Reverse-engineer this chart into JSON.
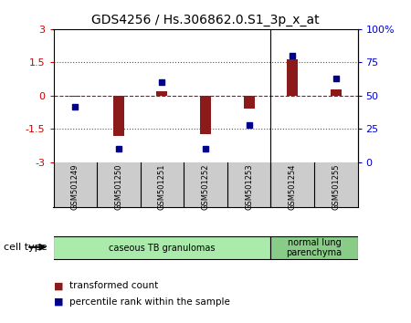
{
  "title": "GDS4256 / Hs.306862.0.S1_3p_x_at",
  "samples": [
    "GSM501249",
    "GSM501250",
    "GSM501251",
    "GSM501252",
    "GSM501253",
    "GSM501254",
    "GSM501255"
  ],
  "transformed_counts": [
    -0.05,
    -1.8,
    0.22,
    -1.72,
    -0.6,
    1.65,
    0.28
  ],
  "percentile_ranks": [
    42,
    10,
    60,
    10,
    28,
    80,
    63
  ],
  "ylim_left": [
    -3,
    3
  ],
  "ylim_right": [
    0,
    100
  ],
  "yticks_left": [
    -3,
    -1.5,
    0,
    1.5,
    3
  ],
  "yticks_right": [
    0,
    25,
    50,
    75,
    100
  ],
  "ytick_labels_right": [
    "0",
    "25",
    "50",
    "75",
    "100%"
  ],
  "bar_color": "#8B1A1A",
  "dot_color": "#00008B",
  "hline_color": "#CC0000",
  "dotted_line_color": "#555555",
  "groups": [
    {
      "label": "caseous TB granulomas",
      "indices": [
        0,
        1,
        2,
        3,
        4
      ],
      "color": "#AAEAAA"
    },
    {
      "label": "normal lung\nparenchyma",
      "indices": [
        5,
        6
      ],
      "color": "#88CC88"
    }
  ],
  "cell_type_label": "cell type",
  "legend_bar_label": "transformed count",
  "legend_dot_label": "percentile rank within the sample",
  "background_color": "#ffffff",
  "plot_bg_color": "#ffffff",
  "tick_bg_color": "#cccccc",
  "left_axis_color": "#CC0000",
  "right_axis_color": "#0000CC"
}
